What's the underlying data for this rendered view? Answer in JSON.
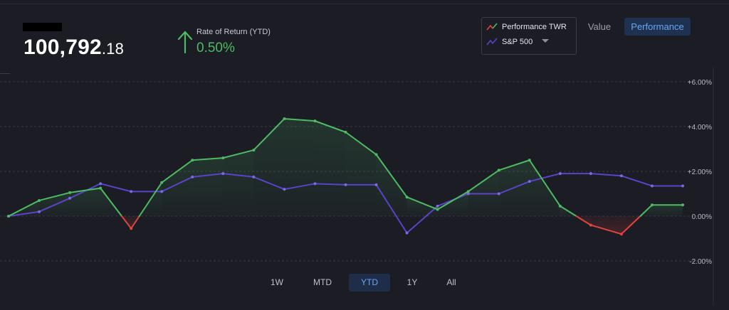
{
  "header": {
    "balance_main": "100,792",
    "balance_cents": ".18",
    "ror_label": "Rate of Return (YTD)",
    "ror_value": "0.50%"
  },
  "legend": {
    "items": [
      {
        "label": "Performance TWR"
      },
      {
        "label": "S&P 500"
      }
    ]
  },
  "view_toggle": {
    "value_label": "Value",
    "performance_label": "Performance",
    "active": "Performance"
  },
  "range_buttons": [
    {
      "label": "1W",
      "active": false
    },
    {
      "label": "MTD",
      "active": false
    },
    {
      "label": "YTD",
      "active": true
    },
    {
      "label": "1Y",
      "active": false
    },
    {
      "label": "All",
      "active": false
    }
  ],
  "colors": {
    "performance_up": "#4dbb63",
    "performance_down": "#e2433c",
    "sp500": "#5b43c9",
    "accent": "#69a6f2"
  },
  "chart_data": {
    "type": "line",
    "ylim": [
      -2.0,
      6.0
    ],
    "y_ticks": [
      "+6.00%",
      "+4.00%",
      "+2.00%",
      "0.00%",
      "-2.00%"
    ],
    "y_tick_values": [
      6,
      4,
      2,
      0,
      -2
    ],
    "series": [
      {
        "name": "Performance TWR",
        "values": [
          0.0,
          0.7,
          1.05,
          1.25,
          -0.55,
          1.5,
          2.5,
          2.6,
          2.95,
          4.35,
          4.25,
          3.75,
          2.75,
          0.85,
          0.3,
          1.1,
          2.05,
          2.5,
          0.45,
          -0.4,
          -0.8,
          0.5,
          0.5
        ]
      },
      {
        "name": "S&P 500",
        "values": [
          0.0,
          0.2,
          0.8,
          1.45,
          1.1,
          1.1,
          1.75,
          1.9,
          1.75,
          1.2,
          1.45,
          1.4,
          1.4,
          -0.75,
          0.45,
          1.0,
          1.0,
          1.55,
          1.9,
          1.9,
          1.8,
          1.35,
          1.35
        ]
      }
    ]
  }
}
